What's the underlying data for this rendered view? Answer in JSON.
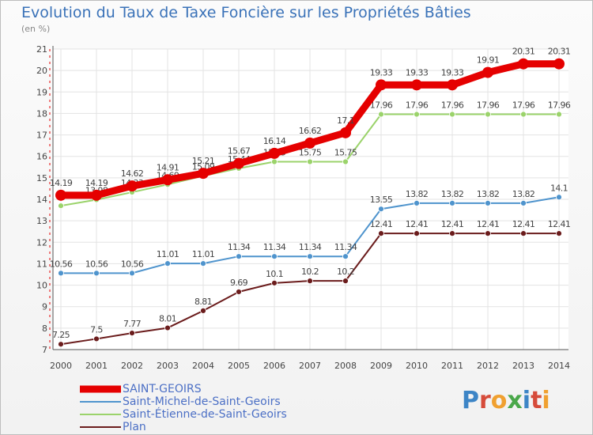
{
  "title": "Evolution du Taux de Taxe Foncière sur les Propriétés Bâties",
  "unit_label": "(en %)",
  "logo": {
    "text": "Proxiti",
    "colors": [
      "#3d85c6",
      "#d64b3a",
      "#f0a030",
      "#4aa84a",
      "#3d85c6",
      "#d64b3a",
      "#f0a030"
    ]
  },
  "chart_data": {
    "type": "line",
    "title": "Evolution du Taux de Taxe Foncière sur les Propriétés Bâties",
    "ylabel": "(en %)",
    "x": [
      "2000",
      "2001",
      "2002",
      "2003",
      "2004",
      "2005",
      "2006",
      "2007",
      "2008",
      "2009",
      "2010",
      "2011",
      "2012",
      "2013",
      "2014"
    ],
    "ylim": [
      7,
      21
    ],
    "yticks": [
      7,
      8,
      9,
      10,
      11,
      12,
      13,
      14,
      15,
      16,
      17,
      18,
      19,
      20,
      21
    ],
    "grid": true,
    "legend_position": "bottom-left",
    "series": [
      {
        "name": "Plan",
        "color": "#6b1c1c",
        "values": [
          7.25,
          7.5,
          7.77,
          8.01,
          8.81,
          9.69,
          10.1,
          10.2,
          10.2,
          12.41,
          12.41,
          12.41,
          12.41,
          12.41,
          12.41
        ],
        "labels": [
          "7.25",
          "7.5",
          "7.77",
          "8.01",
          "8.81",
          "9.69",
          "10.1",
          "10.2",
          "10.2",
          "12.41",
          "12.41",
          "12.41",
          "12.41",
          "12.41",
          "12.41"
        ]
      },
      {
        "name": "Saint-Michel-de-Saint-Geoirs",
        "color": "#4f94cd",
        "values": [
          10.56,
          10.56,
          10.56,
          11.01,
          11.01,
          11.34,
          11.34,
          11.34,
          11.34,
          13.55,
          13.82,
          13.82,
          13.82,
          13.82,
          14.1
        ],
        "labels": [
          "10.56",
          "10.56",
          "10.56",
          "11.01",
          "11.01",
          "11.34",
          "11.34",
          "11.34",
          "11.34",
          "13.55",
          "13.82",
          "13.82",
          "13.82",
          "13.82",
          "14.1"
        ]
      },
      {
        "name": "Saint-Étienne-de-Saint-Geoirs",
        "color": "#9bd36b",
        "values": [
          13.7,
          13.98,
          14.33,
          14.69,
          15.09,
          15.44,
          15.75,
          15.75,
          15.75,
          17.96,
          17.96,
          17.96,
          17.96,
          17.96,
          17.96
        ],
        "labels": [
          "",
          "13.98",
          "14.33",
          "14.69",
          "15.09",
          "15.44",
          "15.75",
          "15.75",
          "15.75",
          "17.96",
          "17.96",
          "17.96",
          "17.96",
          "17.96",
          "17.96"
        ]
      },
      {
        "name": "SAINT-GEOIRS",
        "color": "#e50000",
        "values": [
          14.19,
          14.19,
          14.62,
          14.91,
          15.21,
          15.67,
          16.14,
          16.62,
          17.1,
          19.33,
          19.33,
          19.33,
          19.91,
          20.31,
          20.31
        ],
        "labels": [
          "14.19",
          "14.19",
          "14.62",
          "14.91",
          "15.21",
          "15.67",
          "16.14",
          "16.62",
          "17.1",
          "19.33",
          "19.33",
          "19.33",
          "19.91",
          "20.31",
          "20.31"
        ]
      }
    ],
    "legend": [
      "SAINT-GEOIRS",
      "Saint-Michel-de-Saint-Geoirs",
      "Saint-Étienne-de-Saint-Geoirs",
      "Plan"
    ]
  }
}
